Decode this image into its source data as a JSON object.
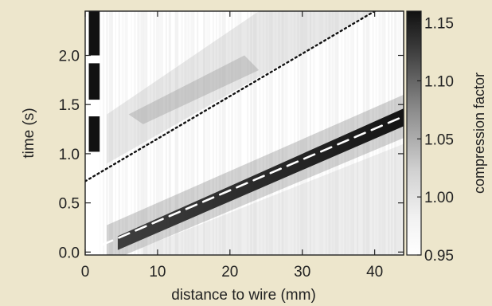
{
  "chart_data": {
    "type": "heatmap",
    "title": "",
    "xlabel": "distance to wire (mm)",
    "ylabel": "time (s)",
    "xlim": [
      0,
      44
    ],
    "ylim": [
      -0.03,
      2.45
    ],
    "x_ticks": [
      0,
      10,
      20,
      30,
      40
    ],
    "y_ticks": [
      0.0,
      0.5,
      1.0,
      1.5,
      2.0
    ],
    "colorbar": {
      "label": "compression factor",
      "range": [
        0.95,
        1.16
      ],
      "ticks": [
        0.95,
        1.0,
        1.05,
        1.1,
        1.15
      ],
      "colormap": "white-to-black grayscale"
    },
    "lines": [
      {
        "style": "dashed",
        "color": "#ffffff",
        "points": [
          [
            0,
            0.0
          ],
          [
            44,
            1.38
          ]
        ]
      },
      {
        "style": "dotted",
        "color": "#111111",
        "points": [
          [
            0,
            0.72
          ],
          [
            40,
            2.45
          ]
        ]
      }
    ],
    "features": [
      {
        "description": "dark compression band along the dashed line",
        "x_range": [
          4,
          44
        ],
        "value": 1.15
      },
      {
        "description": "faint gray wake above the dotted line",
        "x_range": [
          3,
          40
        ],
        "value": 1.01
      }
    ]
  },
  "colors": {
    "background": "#ede6cc",
    "plot_background": "#ffffff",
    "band": "#111111"
  }
}
